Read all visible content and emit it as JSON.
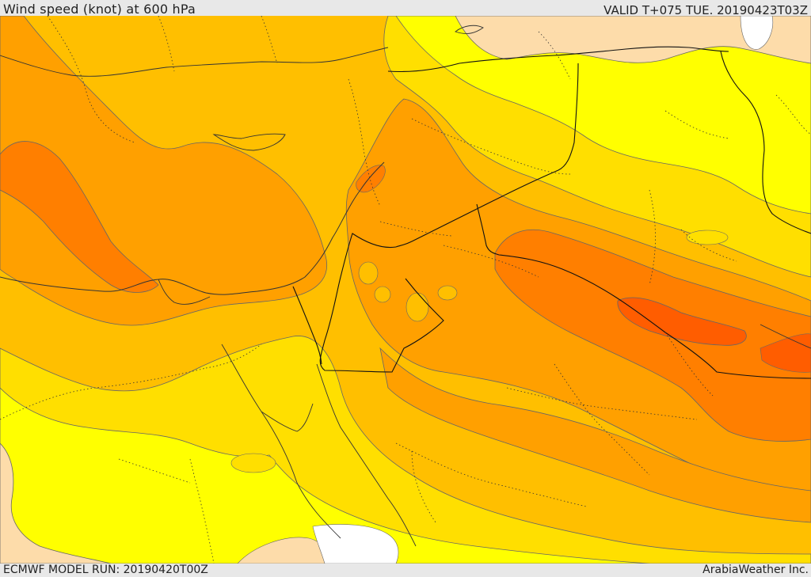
{
  "header": {
    "title": "Wind speed (knot) at 600 hPa",
    "valid_time": "VALID T+075 TUE. 20190423T03Z"
  },
  "footer": {
    "model_run": "ECMWF MODEL RUN: 20190420T00Z",
    "credit": "ArabiaWeather Inc."
  },
  "colors": {
    "band_lightest": "#fddcaa",
    "band_yellow": "#ffff00",
    "band_gold": "#ffdf00",
    "band_amber": "#ffbf00",
    "band_orange": "#ffa000",
    "band_dark_orange": "#ff7f00",
    "band_red_orange": "#ff5d00",
    "no_data": "#ffffff"
  }
}
